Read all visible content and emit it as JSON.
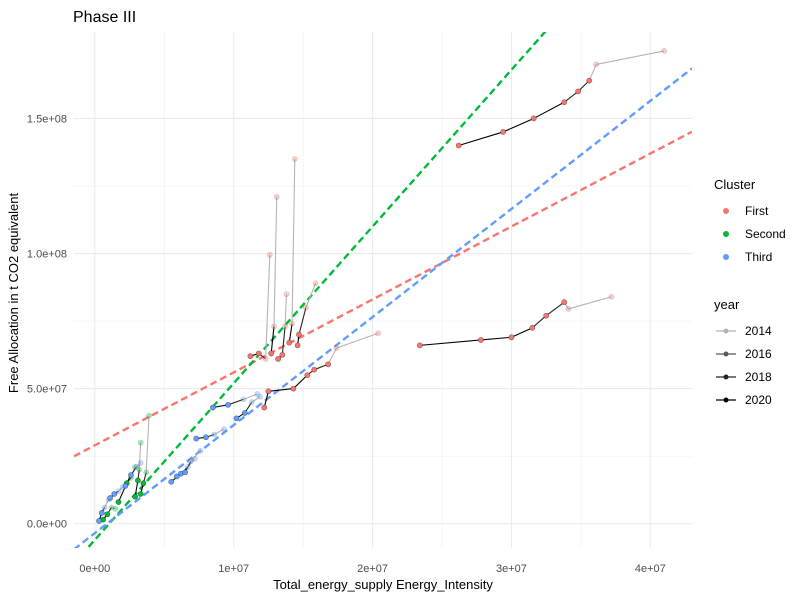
{
  "chart_data": {
    "type": "scatter",
    "title": "Phase III",
    "xlabel": "Total_energy_supply Energy_Intensity",
    "ylabel": "Free Allocation in t CO2 equivalent",
    "xlim": [
      -1500000,
      43000000
    ],
    "ylim": [
      -9000000,
      182000000
    ],
    "x_ticks": [
      {
        "value": 0,
        "label": "0e+00"
      },
      {
        "value": 10000000,
        "label": "1e+07"
      },
      {
        "value": 20000000,
        "label": "2e+07"
      },
      {
        "value": 30000000,
        "label": "3e+07"
      },
      {
        "value": 40000000,
        "label": "4e+07"
      }
    ],
    "y_ticks": [
      {
        "value": 0,
        "label": "0.0e+00"
      },
      {
        "value": 50000000,
        "label": "5.0e+07"
      },
      {
        "value": 100000000,
        "label": "1.0e+08"
      },
      {
        "value": 150000000,
        "label": "1.5e+08"
      }
    ],
    "grid": true,
    "legend_position": "right",
    "legend": {
      "color_title": "Cluster",
      "clusters": [
        {
          "label": "First",
          "color": "#f8766d"
        },
        {
          "label": "Second",
          "color": "#00ba38"
        },
        {
          "label": "Third",
          "color": "#619cff"
        }
      ],
      "year_title": "year",
      "years": [
        {
          "label": "2014",
          "color": "#b3b3b3"
        },
        {
          "label": "2016",
          "color": "#595959"
        },
        {
          "label": "2018",
          "color": "#262626"
        },
        {
          "label": "2020",
          "color": "#000000"
        }
      ]
    },
    "trend_lines": [
      {
        "cluster": "First",
        "intercept": 29000000,
        "slope": 2.7
      },
      {
        "cluster": "Second",
        "intercept": -6000000,
        "slope": 5.8
      },
      {
        "cluster": "Third",
        "intercept": -3500000,
        "slope": 4.0
      }
    ],
    "paths": [
      {
        "cluster": "First",
        "points": [
          [
            26200000,
            140000000
          ],
          [
            29400000,
            145000000
          ],
          [
            31600000,
            150000000
          ],
          [
            33800000,
            156000000
          ],
          [
            34800000,
            160000000
          ],
          [
            35600000,
            164000000
          ],
          [
            36100000,
            170000000
          ],
          [
            41000000,
            175000000
          ]
        ]
      },
      {
        "cluster": "First",
        "points": [
          [
            23400000,
            66000000
          ],
          [
            27800000,
            68000000
          ],
          [
            30000000,
            69000000
          ],
          [
            31500000,
            72500000
          ],
          [
            32500000,
            77000000
          ],
          [
            33800000,
            82000000
          ],
          [
            34100000,
            79500000
          ],
          [
            37200000,
            84000000
          ]
        ]
      },
      {
        "cluster": "First",
        "points": [
          [
            12200000,
            43000000
          ],
          [
            12500000,
            49000000
          ],
          [
            14300000,
            50000000
          ],
          [
            15300000,
            55000000
          ],
          [
            15800000,
            57000000
          ],
          [
            16800000,
            59000000
          ],
          [
            17400000,
            65000000
          ],
          [
            20400000,
            70500000
          ]
        ]
      },
      {
        "cluster": "First",
        "points": [
          [
            11200000,
            62000000
          ],
          [
            11800000,
            63000000
          ],
          [
            12300000,
            61000000
          ],
          [
            12600000,
            99500000
          ]
        ]
      },
      {
        "cluster": "First",
        "points": [
          [
            12700000,
            63000000
          ],
          [
            12900000,
            73000000
          ],
          [
            13100000,
            121000000
          ]
        ]
      },
      {
        "cluster": "First",
        "points": [
          [
            13200000,
            61000000
          ],
          [
            13500000,
            62500000
          ],
          [
            13700000,
            73000000
          ],
          [
            13800000,
            85000000
          ]
        ]
      },
      {
        "cluster": "First",
        "points": [
          [
            14000000,
            67000000
          ],
          [
            14200000,
            74000000
          ],
          [
            14400000,
            135000000
          ]
        ]
      },
      {
        "cluster": "First",
        "points": [
          [
            14600000,
            66000000
          ],
          [
            14700000,
            70000000
          ],
          [
            15200000,
            80000000
          ],
          [
            15900000,
            89000000
          ]
        ]
      },
      {
        "cluster": "Second",
        "points": [
          [
            600000,
            1500000
          ],
          [
            900000,
            3500000
          ],
          [
            1200000,
            6000000
          ],
          [
            1500000,
            5500000
          ]
        ]
      },
      {
        "cluster": "Second",
        "points": [
          [
            1700000,
            8000000
          ],
          [
            2300000,
            15000000
          ],
          [
            2600000,
            17000000
          ],
          [
            2900000,
            21000000
          ]
        ]
      },
      {
        "cluster": "Second",
        "points": [
          [
            2900000,
            10000000
          ],
          [
            3100000,
            16000000
          ],
          [
            3200000,
            20000000
          ],
          [
            3300000,
            30000000
          ]
        ]
      },
      {
        "cluster": "Second",
        "points": [
          [
            3300000,
            11000000
          ],
          [
            3500000,
            15000000
          ],
          [
            3700000,
            19000000
          ],
          [
            3900000,
            40000000
          ]
        ]
      },
      {
        "cluster": "Third",
        "points": [
          [
            300000,
            1000000
          ],
          [
            500000,
            4000000
          ],
          [
            700000,
            6000000
          ],
          [
            1000000,
            9000000
          ]
        ]
      },
      {
        "cluster": "Third",
        "points": [
          [
            1100000,
            9500000
          ],
          [
            1400000,
            11000000
          ],
          [
            1700000,
            12000000
          ],
          [
            2000000,
            13500000
          ]
        ]
      },
      {
        "cluster": "Third",
        "points": [
          [
            2200000,
            14000000
          ],
          [
            2600000,
            18000000
          ],
          [
            3000000,
            21000000
          ],
          [
            3300000,
            22500000
          ]
        ]
      },
      {
        "cluster": "Third",
        "points": [
          [
            5500000,
            15500000
          ],
          [
            6200000,
            18500000
          ],
          [
            6700000,
            21000000
          ],
          [
            7200000,
            24000000
          ]
        ]
      },
      {
        "cluster": "Third",
        "points": [
          [
            5900000,
            17500000
          ],
          [
            6500000,
            19000000
          ],
          [
            6900000,
            23000000
          ],
          [
            7600000,
            27000000
          ]
        ]
      },
      {
        "cluster": "Third",
        "points": [
          [
            7300000,
            31500000
          ],
          [
            8000000,
            32000000
          ],
          [
            8600000,
            33000000
          ],
          [
            9300000,
            35000000
          ]
        ]
      },
      {
        "cluster": "Third",
        "points": [
          [
            8500000,
            43000000
          ],
          [
            9600000,
            44000000
          ],
          [
            10700000,
            46000000
          ],
          [
            11700000,
            48000000
          ]
        ]
      },
      {
        "cluster": "Third",
        "points": [
          [
            10200000,
            39000000
          ],
          [
            10800000,
            41000000
          ],
          [
            11300000,
            45000000
          ],
          [
            11900000,
            47000000
          ]
        ]
      }
    ]
  }
}
